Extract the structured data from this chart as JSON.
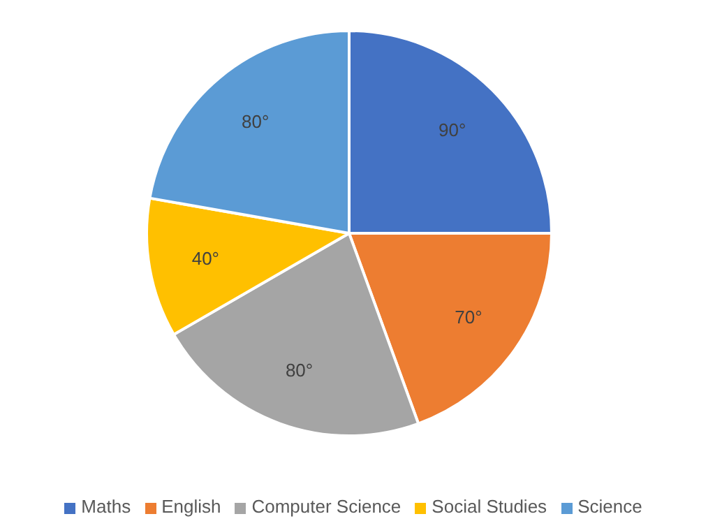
{
  "chart_data": {
    "type": "pie",
    "categories": [
      "Maths",
      "English",
      "Computer Science",
      "Social Studies",
      "Science"
    ],
    "values": [
      90,
      70,
      80,
      40,
      80
    ],
    "colors": [
      "#4472c4",
      "#ed7d31",
      "#a5a5a5",
      "#ffc000",
      "#5b9bd5"
    ],
    "value_labels": [
      "90°",
      "70°",
      "80°",
      "40°",
      "80°"
    ],
    "legend": "bottom"
  }
}
